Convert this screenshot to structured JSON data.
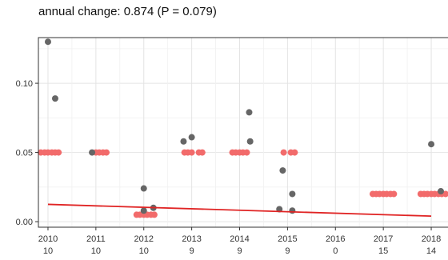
{
  "chart_data": {
    "type": "scatter",
    "title": "annual change: 0.874 (P = 0.079)",
    "xlabel": "",
    "ylabel": "",
    "xlim": [
      2009.8,
      2018.35
    ],
    "ylim": [
      -0.004,
      0.133
    ],
    "x_ticks": [
      {
        "year": "2010",
        "count": "10"
      },
      {
        "year": "2011",
        "count": "10"
      },
      {
        "year": "2012",
        "count": "10"
      },
      {
        "year": "2013",
        "count": "9"
      },
      {
        "year": "2014",
        "count": "9"
      },
      {
        "year": "2015",
        "count": "9"
      },
      {
        "year": "2016",
        "count": "0"
      },
      {
        "year": "2017",
        "count": "15"
      },
      {
        "year": "2018",
        "count": "14"
      }
    ],
    "y_ticks": [
      {
        "value": 0.0,
        "label": "0.00"
      },
      {
        "value": 0.05,
        "label": "0.05"
      },
      {
        "value": 0.1,
        "label": "0.10"
      }
    ],
    "grid": true,
    "legend": "none",
    "colors": {
      "observed": "#666666",
      "reference": "#f26b6b",
      "trend": "#e02424"
    },
    "series": [
      {
        "role": "observed",
        "points": [
          [
            2010.0,
            0.13
          ],
          [
            2010.15,
            0.089
          ],
          [
            2010.92,
            0.05
          ],
          [
            2012.0,
            0.024
          ],
          [
            2012.0,
            0.008
          ],
          [
            2012.2,
            0.01
          ],
          [
            2012.83,
            0.058
          ],
          [
            2013.0,
            0.061
          ],
          [
            2014.2,
            0.079
          ],
          [
            2014.22,
            0.058
          ],
          [
            2014.9,
            0.037
          ],
          [
            2015.1,
            0.02
          ],
          [
            2015.1,
            0.008
          ],
          [
            2014.83,
            0.009
          ],
          [
            2018.0,
            0.056
          ],
          [
            2018.2,
            0.022
          ]
        ]
      },
      {
        "role": "reference",
        "points": [
          [
            2009.85,
            0.05
          ],
          [
            2009.93,
            0.05
          ],
          [
            2010.0,
            0.05
          ],
          [
            2010.08,
            0.05
          ],
          [
            2010.15,
            0.05
          ],
          [
            2010.22,
            0.05
          ],
          [
            2011.0,
            0.05
          ],
          [
            2011.07,
            0.05
          ],
          [
            2011.15,
            0.05
          ],
          [
            2011.22,
            0.05
          ],
          [
            2011.85,
            0.005
          ],
          [
            2011.92,
            0.005
          ],
          [
            2012.0,
            0.005
          ],
          [
            2012.07,
            0.005
          ],
          [
            2012.15,
            0.005
          ],
          [
            2012.22,
            0.005
          ],
          [
            2012.85,
            0.05
          ],
          [
            2012.92,
            0.05
          ],
          [
            2013.0,
            0.05
          ],
          [
            2013.15,
            0.05
          ],
          [
            2013.22,
            0.05
          ],
          [
            2013.85,
            0.05
          ],
          [
            2013.92,
            0.05
          ],
          [
            2014.0,
            0.05
          ],
          [
            2014.07,
            0.05
          ],
          [
            2014.15,
            0.05
          ],
          [
            2014.92,
            0.05
          ],
          [
            2015.07,
            0.05
          ],
          [
            2015.15,
            0.05
          ],
          [
            2016.78,
            0.02
          ],
          [
            2016.85,
            0.02
          ],
          [
            2016.92,
            0.02
          ],
          [
            2017.0,
            0.02
          ],
          [
            2017.07,
            0.02
          ],
          [
            2017.15,
            0.02
          ],
          [
            2017.22,
            0.02
          ],
          [
            2017.78,
            0.02
          ],
          [
            2017.85,
            0.02
          ],
          [
            2017.92,
            0.02
          ],
          [
            2018.0,
            0.02
          ],
          [
            2018.07,
            0.02
          ],
          [
            2018.15,
            0.02
          ],
          [
            2018.22,
            0.02
          ],
          [
            2018.3,
            0.02
          ]
        ]
      }
    ],
    "trend_line": {
      "x": [
        2010.0,
        2018.0
      ],
      "y": [
        0.0125,
        0.004
      ]
    }
  }
}
